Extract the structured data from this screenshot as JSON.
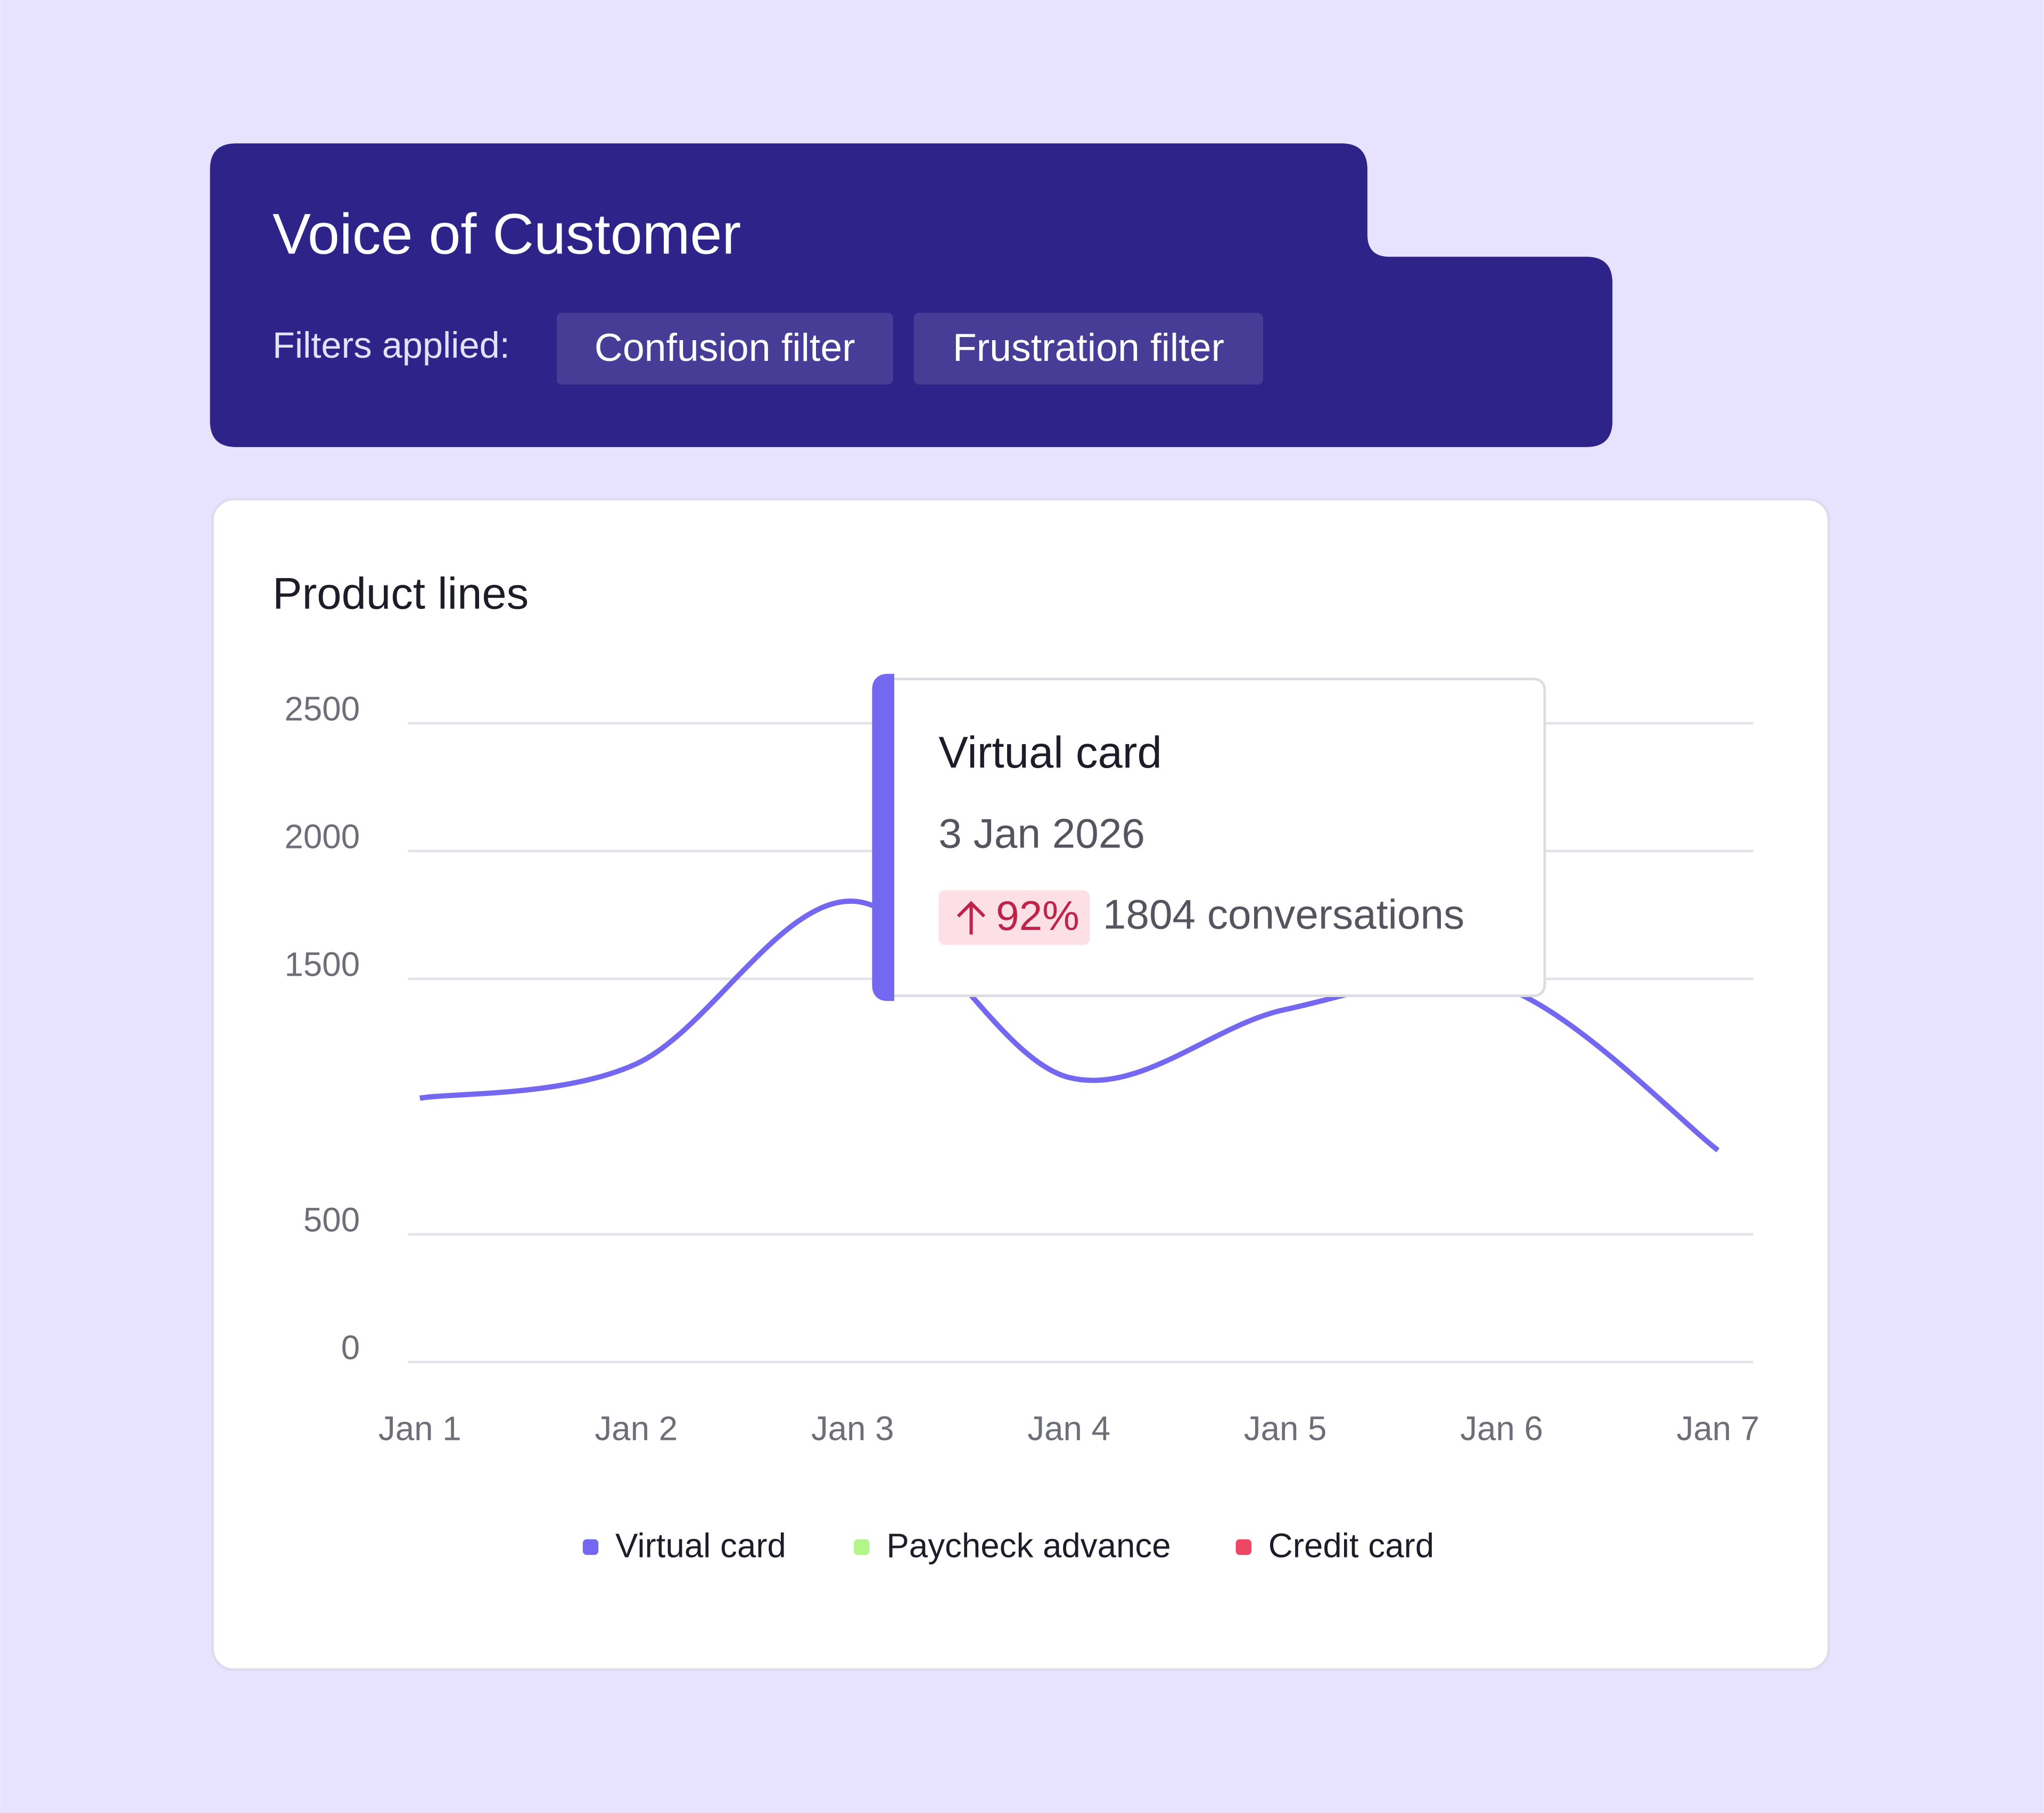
{
  "header": {
    "title": "Voice of Customer",
    "filters_label": "Filters applied:",
    "filters": [
      "Confusion filter",
      "Frustration filter"
    ]
  },
  "chart_data": {
    "type": "line",
    "title": "Product lines",
    "categories": [
      "Jan 1",
      "Jan 2",
      "Jan 3",
      "Jan 4",
      "Jan 5",
      "Jan 6",
      "Jan 7"
    ],
    "series": [
      {
        "name": "Virtual card",
        "color": "#7467f0",
        "values": [
          1033,
          1167,
          1804,
          1114,
          1380,
          1469,
          829
        ]
      },
      {
        "name": "Paycheck advance",
        "color": "#b4f58a",
        "values": [
          null,
          null,
          null,
          null,
          null,
          null,
          null
        ]
      },
      {
        "name": "Credit card",
        "color": "#ee4766",
        "values": [
          null,
          null,
          null,
          null,
          null,
          null,
          null
        ]
      }
    ],
    "ylim": [
      0,
      2500
    ],
    "yticks": [
      0,
      500,
      1500,
      2000,
      2500
    ],
    "grid": true,
    "legend": "bottom",
    "tooltip": {
      "title": "Virtual card",
      "date": "3 Jan 2026",
      "change": "92%",
      "text": "1804 conversations"
    }
  }
}
